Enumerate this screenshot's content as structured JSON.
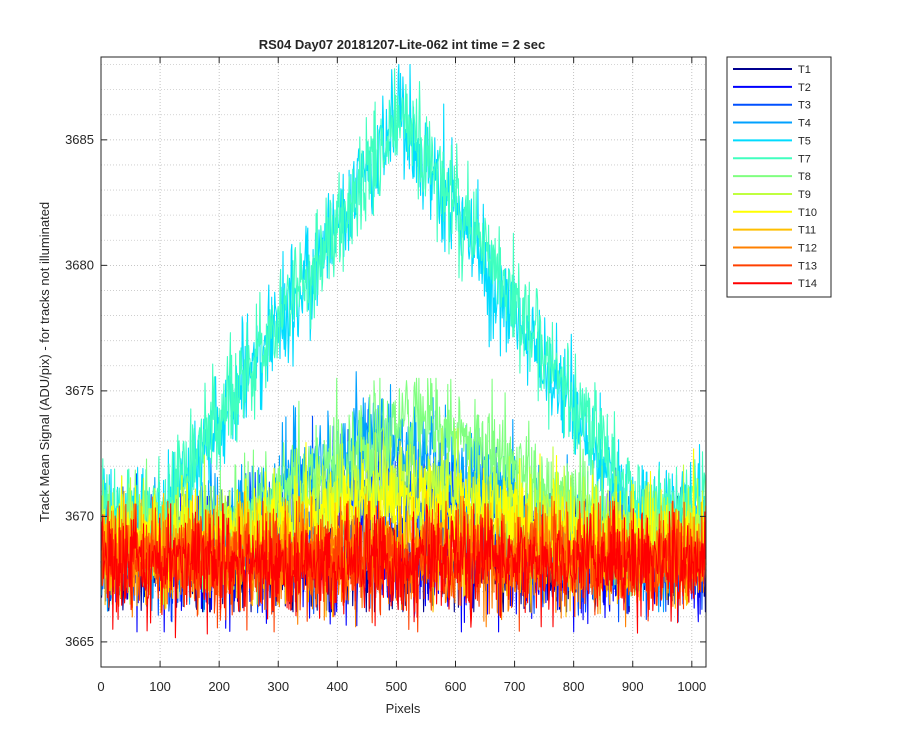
{
  "chart_data": {
    "type": "line",
    "title": "RS04 Day07 20181207-Lite-062 int time = 2 sec",
    "xlabel": "Pixels",
    "ylabel": "Track Mean Signal (ADU/pix) - for tracks not illuminated",
    "xlim": [
      0,
      1024
    ],
    "ylim": [
      3664,
      3688.3
    ],
    "xticks": [
      0,
      100,
      200,
      300,
      400,
      500,
      600,
      700,
      800,
      900,
      1000
    ],
    "yticks": [
      3665,
      3670,
      3675,
      3680,
      3685
    ],
    "grid": true,
    "minor_grid": true,
    "legend_placement": "outside-top-right",
    "series": [
      {
        "name": "T1",
        "color": "#00008f",
        "baseline": 3668.3,
        "noise": 1.1,
        "peak": 0,
        "peak_center": 512,
        "peak_width": 330,
        "min_y": 3666.2,
        "max_y": 3670.8
      },
      {
        "name": "T2",
        "color": "#0000ff",
        "baseline": 3668.4,
        "noise": 1.1,
        "peak": 0,
        "peak_center": 512,
        "peak_width": 330,
        "min_y": 3665.4,
        "max_y": 3670.9
      },
      {
        "name": "T3",
        "color": "#0050ff",
        "baseline": 3668.6,
        "noise": 1.2,
        "peak": 2.8,
        "peak_center": 470,
        "peak_width": 330,
        "min_y": 3665.8,
        "max_y": 3676.0
      },
      {
        "name": "T4",
        "color": "#00a0ff",
        "baseline": 3668.8,
        "noise": 1.1,
        "peak": 4.5,
        "peak_center": 480,
        "peak_width": 340,
        "min_y": 3666.2,
        "max_y": 3675.8
      },
      {
        "name": "T5",
        "color": "#00dcff",
        "baseline": 3670.0,
        "noise": 1.0,
        "peak": 15.8,
        "peak_center": 505,
        "peak_width": 395,
        "min_y": 3667.5,
        "max_y": 3688.0
      },
      {
        "name": "T7",
        "color": "#40ffbf",
        "baseline": 3670.3,
        "noise": 1.0,
        "peak": 15.6,
        "peak_center": 510,
        "peak_width": 400,
        "min_y": 3668.0,
        "max_y": 3688.0
      },
      {
        "name": "T8",
        "color": "#80ff80",
        "baseline": 3669.3,
        "noise": 1.0,
        "peak": 4.8,
        "peak_center": 540,
        "peak_width": 360,
        "min_y": 3666.5,
        "max_y": 3675.5
      },
      {
        "name": "T9",
        "color": "#bfff40",
        "baseline": 3669.2,
        "noise": 1.0,
        "peak": 2.4,
        "peak_center": 520,
        "peak_width": 340,
        "min_y": 3666.5,
        "max_y": 3673.5
      },
      {
        "name": "T10",
        "color": "#ffff00",
        "baseline": 3669.0,
        "noise": 1.0,
        "peak": 1.6,
        "peak_center": 520,
        "peak_width": 340,
        "min_y": 3665.0,
        "max_y": 3673.0
      },
      {
        "name": "T11",
        "color": "#ffbf00",
        "baseline": 3668.5,
        "noise": 1.0,
        "peak": 0.3,
        "peak_center": 520,
        "peak_width": 340,
        "min_y": 3666.0,
        "max_y": 3671.0
      },
      {
        "name": "T12",
        "color": "#ff8000",
        "baseline": 3668.4,
        "noise": 1.0,
        "peak": 0,
        "peak_center": 520,
        "peak_width": 340,
        "min_y": 3665.6,
        "max_y": 3670.8
      },
      {
        "name": "T13",
        "color": "#ff4000",
        "baseline": 3668.3,
        "noise": 1.0,
        "peak": 0,
        "peak_center": 520,
        "peak_width": 340,
        "min_y": 3665.4,
        "max_y": 3670.6
      },
      {
        "name": "T14",
        "color": "#ff0000",
        "baseline": 3668.2,
        "noise": 1.0,
        "peak": 0,
        "peak_center": 520,
        "peak_width": 340,
        "min_y": 3664.0,
        "max_y": 3670.5
      }
    ]
  }
}
